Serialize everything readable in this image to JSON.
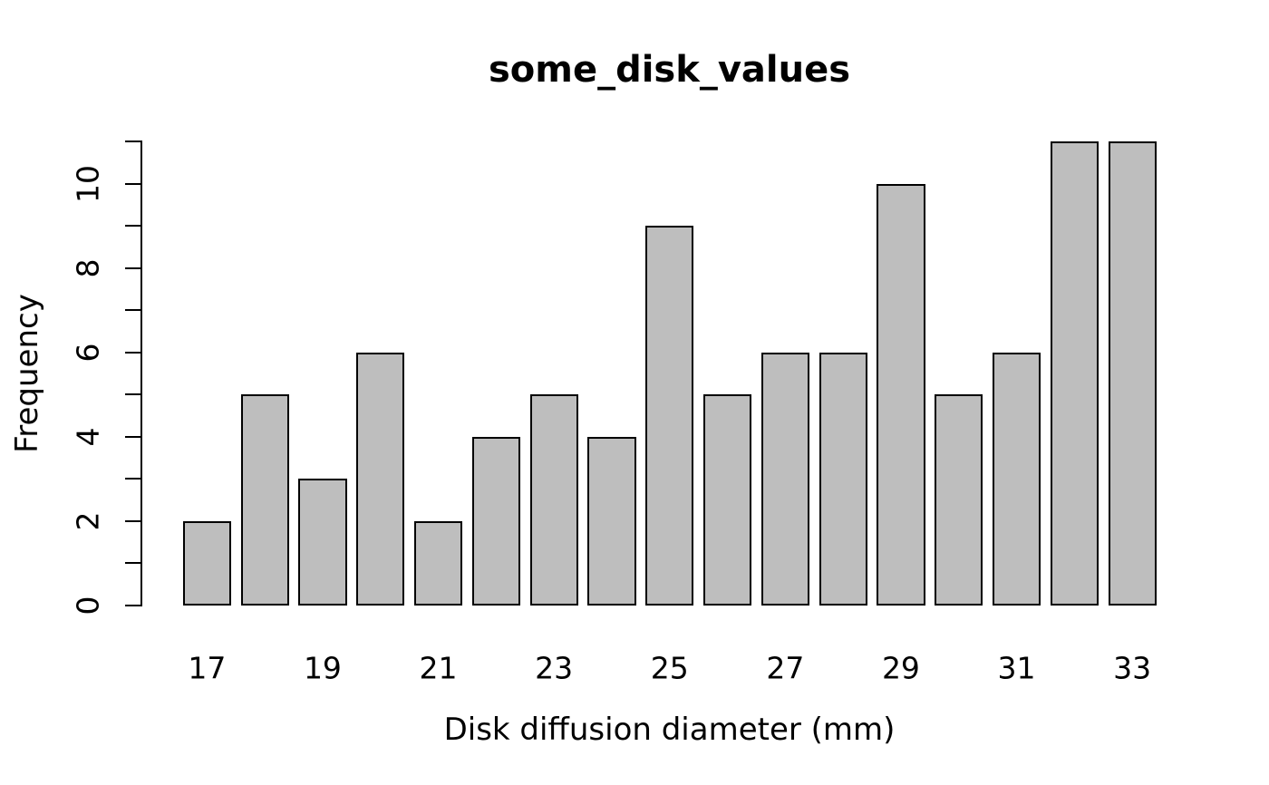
{
  "chart_data": {
    "type": "bar",
    "chart_kind": "histogram",
    "title": "some_disk_values",
    "xlabel": "Disk diffusion diameter (mm)",
    "ylabel": "Frequency",
    "categories": [
      17,
      18,
      19,
      20,
      21,
      22,
      23,
      24,
      25,
      26,
      27,
      28,
      29,
      30,
      31,
      32,
      33
    ],
    "values": [
      2,
      5,
      3,
      6,
      2,
      4,
      5,
      4,
      9,
      5,
      6,
      6,
      10,
      5,
      6,
      11,
      11
    ],
    "x_tick_labels": [
      "17",
      "19",
      "21",
      "23",
      "25",
      "27",
      "29",
      "31",
      "33"
    ],
    "x_tick_positions": [
      17,
      19,
      21,
      23,
      25,
      27,
      29,
      31,
      33
    ],
    "y_tick_values": [
      0,
      1,
      2,
      3,
      4,
      5,
      6,
      7,
      8,
      9,
      10,
      11
    ],
    "y_labeled_ticks": [
      0,
      2,
      4,
      6,
      8,
      10
    ],
    "ylim": [
      0,
      11
    ],
    "grid": false,
    "legend_position": "none",
    "bar_fill_color": "#bebebe",
    "bar_edge_color": "#000000",
    "axis_color": "#000000",
    "text_color": "#000000",
    "background_color": "#ffffff"
  }
}
